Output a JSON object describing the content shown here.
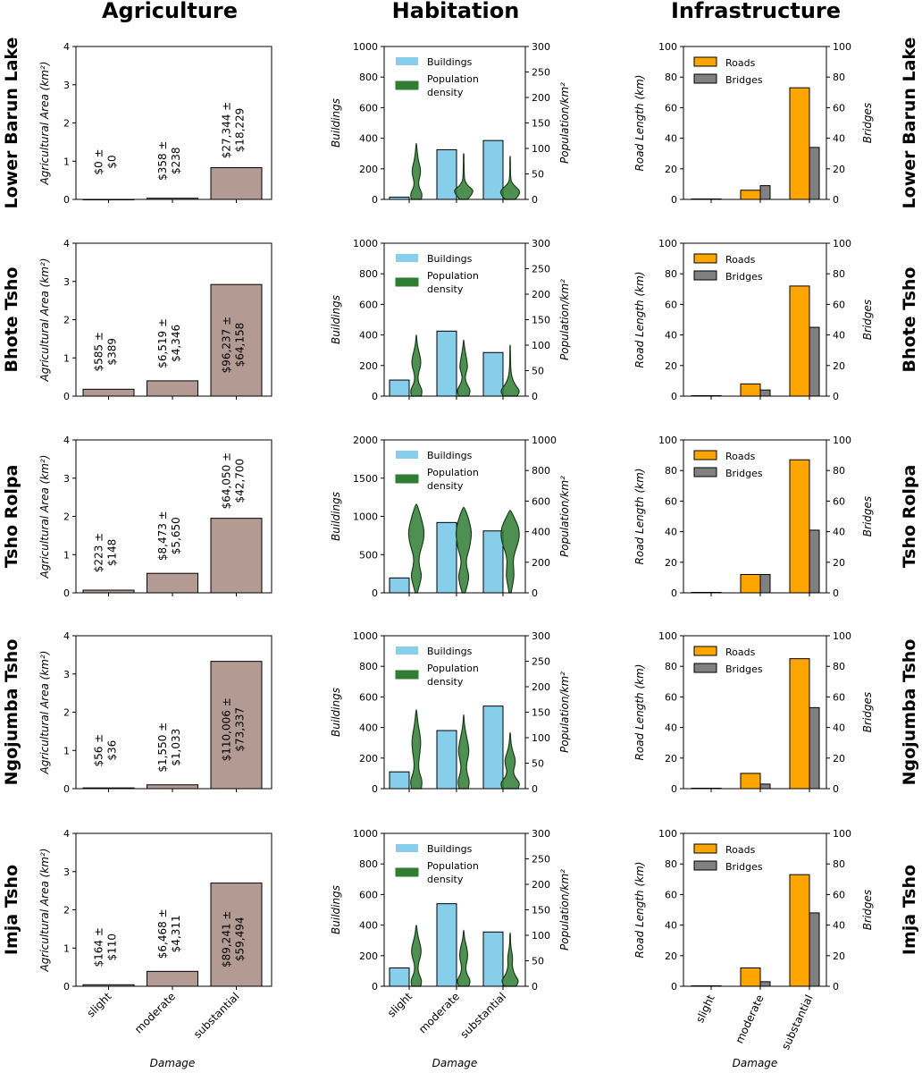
{
  "column_titles": [
    "Agriculture",
    "Habitation",
    "Infrastructure"
  ],
  "rows": [
    "Lower Barun Lake",
    "Bhote Tsho",
    "Tsho Rolpa",
    "Ngojumba Tsho",
    "Imja Tsho"
  ],
  "categories": [
    "slight",
    "moderate",
    "substantial"
  ],
  "xlabel": "Damage",
  "colors": {
    "agriculture": "#b39b94",
    "buildings": "#87ceeb",
    "population": "#2e7d32",
    "roads": "#ffa500",
    "bridges": "#808080"
  },
  "chart_data": [
    {
      "type": "bar",
      "row": "Lower Barun Lake",
      "column": "Agriculture",
      "ylabel": "Agricultural Area (km²)",
      "ylim": [
        0,
        4
      ],
      "yticks": [
        "0",
        "1",
        "2",
        "3",
        "4"
      ],
      "values": [
        0.0,
        0.03,
        0.83
      ],
      "annotations": [
        [
          "$0 ±",
          "$0"
        ],
        [
          "$358 ±",
          "$238"
        ],
        [
          "$27,344 ±",
          "$18,229"
        ]
      ]
    },
    {
      "type": "bar",
      "row": "Bhote Tsho",
      "column": "Agriculture",
      "ylabel": "Agricultural Area (km²)",
      "ylim": [
        0,
        4
      ],
      "yticks": [
        "0",
        "1",
        "2",
        "3",
        "4"
      ],
      "values": [
        0.18,
        0.4,
        2.92
      ],
      "annotations": [
        [
          "$585 ±",
          "$389"
        ],
        [
          "$6,519 ±",
          "$4,346"
        ],
        [
          "$96,237 ±",
          "$64,158"
        ]
      ]
    },
    {
      "type": "bar",
      "row": "Tsho Rolpa",
      "column": "Agriculture",
      "ylabel": "Agricultural Area (km²)",
      "ylim": [
        0,
        4
      ],
      "yticks": [
        "0",
        "1",
        "2",
        "3",
        "4"
      ],
      "values": [
        0.07,
        0.51,
        1.95
      ],
      "annotations": [
        [
          "$223 ±",
          "$148"
        ],
        [
          "$8,473 ±",
          "$5,650"
        ],
        [
          "$64,050 ±",
          "$42,700"
        ]
      ]
    },
    {
      "type": "bar",
      "row": "Ngojumba Tsho",
      "column": "Agriculture",
      "ylabel": "Agricultural Area (km²)",
      "ylim": [
        0,
        4
      ],
      "yticks": [
        "0",
        "1",
        "2",
        "3",
        "4"
      ],
      "values": [
        0.02,
        0.1,
        3.33
      ],
      "annotations": [
        [
          "$56 ±",
          "$36"
        ],
        [
          "$1,550 ±",
          "$1,033"
        ],
        [
          "$110,006 ±",
          "$73,337"
        ]
      ]
    },
    {
      "type": "bar",
      "row": "Imja Tsho",
      "column": "Agriculture",
      "ylabel": "Agricultural Area (km²)",
      "ylim": [
        0,
        4
      ],
      "yticks": [
        "0",
        "1",
        "2",
        "3",
        "4"
      ],
      "values": [
        0.04,
        0.39,
        2.7
      ],
      "annotations": [
        [
          "$164 ±",
          "$110"
        ],
        [
          "$6,468 ±",
          "$4,311"
        ],
        [
          "$89,241 ±",
          "$59,494"
        ]
      ]
    },
    {
      "type": "bar",
      "row": "Lower Barun Lake",
      "column": "Habitation",
      "ylabel": "Buildings",
      "ylabel2": "Population/km²",
      "ylim": [
        0,
        1000
      ],
      "ylim2": [
        0,
        300
      ],
      "yticks": [
        "0",
        "200",
        "400",
        "600",
        "800",
        "1000"
      ],
      "yticks2": [
        "0",
        "50",
        "100",
        "150",
        "200",
        "250",
        "300"
      ],
      "legend": [
        "Buildings",
        "Population density"
      ],
      "values": [
        15,
        325,
        385
      ],
      "violins": [
        {
          "min": 0,
          "max": 110,
          "profile": [
            0.5,
            0.6,
            0.3,
            0.2,
            0.35,
            0.45,
            0.35,
            0.2,
            0.12,
            0.06,
            0.02
          ]
        },
        {
          "min": 0,
          "max": 90,
          "profile": [
            0.4,
            0.8,
            1.0,
            0.4,
            0.12,
            0.06,
            0.05,
            0.04,
            0.03,
            0.03,
            0.02
          ]
        },
        {
          "min": 0,
          "max": 85,
          "profile": [
            0.5,
            0.9,
            1.0,
            0.5,
            0.12,
            0.06,
            0.04,
            0.03,
            0.03,
            0.02,
            0.02
          ]
        }
      ]
    },
    {
      "type": "bar",
      "row": "Bhote Tsho",
      "column": "Habitation",
      "ylabel": "Buildings",
      "ylabel2": "Population/km²",
      "ylim": [
        0,
        1000
      ],
      "ylim2": [
        0,
        300
      ],
      "yticks": [
        "0",
        "200",
        "400",
        "600",
        "800",
        "1000"
      ],
      "yticks2": [
        "0",
        "50",
        "100",
        "150",
        "200",
        "250",
        "300"
      ],
      "legend": [
        "Buildings",
        "Population density"
      ],
      "values": [
        105,
        425,
        285
      ],
      "violins": [
        {
          "min": 0,
          "max": 120,
          "profile": [
            0.5,
            0.6,
            0.25,
            0.15,
            0.25,
            0.45,
            0.45,
            0.3,
            0.15,
            0.05,
            0.02
          ]
        },
        {
          "min": 0,
          "max": 110,
          "profile": [
            0.5,
            0.7,
            0.35,
            0.15,
            0.2,
            0.4,
            0.35,
            0.25,
            0.15,
            0.06,
            0.02
          ]
        },
        {
          "min": 0,
          "max": 100,
          "profile": [
            0.7,
            1.0,
            0.6,
            0.3,
            0.15,
            0.08,
            0.05,
            0.04,
            0.03,
            0.02,
            0.02
          ]
        }
      ]
    },
    {
      "type": "bar",
      "row": "Tsho Rolpa",
      "column": "Habitation",
      "ylabel": "Buildings",
      "ylabel2": "Population/km²",
      "ylim": [
        0,
        2000
      ],
      "ylim2": [
        0,
        1000
      ],
      "yticks": [
        "0",
        "500",
        "1000",
        "1500",
        "2000"
      ],
      "yticks2": [
        "0",
        "200",
        "400",
        "600",
        "800",
        "1000"
      ],
      "legend": [
        "Buildings",
        "Population density"
      ],
      "values": [
        195,
        920,
        810
      ],
      "violins": [
        {
          "min": 0,
          "max": 580,
          "profile": [
            0.1,
            0.35,
            0.55,
            0.3,
            0.25,
            0.5,
            0.75,
            0.8,
            0.6,
            0.35,
            0.05
          ]
        },
        {
          "min": 0,
          "max": 560,
          "profile": [
            0.15,
            0.4,
            0.55,
            0.3,
            0.25,
            0.55,
            0.7,
            0.8,
            0.65,
            0.4,
            0.05
          ]
        },
        {
          "min": 0,
          "max": 540,
          "profile": [
            0.1,
            0.25,
            0.4,
            0.35,
            0.3,
            0.5,
            0.8,
            0.95,
            0.85,
            0.45,
            0.05
          ]
        }
      ]
    },
    {
      "type": "bar",
      "row": "Ngojumba Tsho",
      "column": "Habitation",
      "ylabel": "Buildings",
      "ylabel2": "Population/km²",
      "ylim": [
        0,
        1000
      ],
      "ylim2": [
        0,
        300
      ],
      "yticks": [
        "0",
        "200",
        "400",
        "600",
        "800",
        "1000"
      ],
      "yticks2": [
        "0",
        "50",
        "100",
        "150",
        "200",
        "250",
        "300"
      ],
      "legend": [
        "Buildings",
        "Population density"
      ],
      "values": [
        110,
        380,
        540
      ],
      "violins": [
        {
          "min": 0,
          "max": 155,
          "profile": [
            0.5,
            0.6,
            0.3,
            0.2,
            0.3,
            0.4,
            0.45,
            0.35,
            0.2,
            0.1,
            0.02
          ]
        },
        {
          "min": 0,
          "max": 145,
          "profile": [
            0.45,
            0.6,
            0.35,
            0.25,
            0.4,
            0.55,
            0.45,
            0.3,
            0.15,
            0.05,
            0.02
          ]
        },
        {
          "min": 0,
          "max": 110,
          "profile": [
            0.8,
            1.0,
            0.5,
            0.3,
            0.45,
            0.55,
            0.4,
            0.2,
            0.1,
            0.05,
            0.02
          ]
        }
      ]
    },
    {
      "type": "bar",
      "row": "Imja Tsho",
      "column": "Habitation",
      "ylabel": "Buildings",
      "ylabel2": "Population/km²",
      "ylim": [
        0,
        1000
      ],
      "ylim2": [
        0,
        300
      ],
      "yticks": [
        "0",
        "200",
        "400",
        "600",
        "800",
        "1000"
      ],
      "yticks2": [
        "0",
        "50",
        "100",
        "150",
        "200",
        "250",
        "300"
      ],
      "legend": [
        "Buildings",
        "Population density"
      ],
      "values": [
        120,
        540,
        355
      ],
      "violins": [
        {
          "min": 0,
          "max": 120,
          "profile": [
            0.45,
            0.55,
            0.25,
            0.15,
            0.25,
            0.45,
            0.5,
            0.35,
            0.2,
            0.08,
            0.02
          ]
        },
        {
          "min": 0,
          "max": 110,
          "profile": [
            0.5,
            0.7,
            0.35,
            0.2,
            0.25,
            0.4,
            0.4,
            0.3,
            0.15,
            0.05,
            0.02
          ]
        },
        {
          "min": 0,
          "max": 105,
          "profile": [
            0.6,
            0.9,
            0.5,
            0.3,
            0.2,
            0.25,
            0.2,
            0.1,
            0.05,
            0.03,
            0.02
          ]
        }
      ]
    },
    {
      "type": "bar",
      "row": "Lower Barun Lake",
      "column": "Infrastructure",
      "ylabel": "Road Length (km)",
      "ylabel2": "Bridges",
      "ylim": [
        0,
        100
      ],
      "ylim2": [
        0,
        100
      ],
      "yticks": [
        "0",
        "20",
        "40",
        "60",
        "80",
        "100"
      ],
      "yticks2": [
        "0",
        "20",
        "40",
        "60",
        "80",
        "100"
      ],
      "legend": [
        "Roads",
        "Bridges"
      ],
      "series": [
        {
          "name": "Roads",
          "values": [
            0.3,
            6,
            73
          ]
        },
        {
          "name": "Bridges",
          "values": [
            0.3,
            9,
            34
          ]
        }
      ]
    },
    {
      "type": "bar",
      "row": "Bhote Tsho",
      "column": "Infrastructure",
      "ylabel": "Road Length (km)",
      "ylabel2": "Bridges",
      "ylim": [
        0,
        100
      ],
      "ylim2": [
        0,
        100
      ],
      "yticks": [
        "0",
        "20",
        "40",
        "60",
        "80",
        "100"
      ],
      "yticks2": [
        "0",
        "20",
        "40",
        "60",
        "80",
        "100"
      ],
      "legend": [
        "Roads",
        "Bridges"
      ],
      "series": [
        {
          "name": "Roads",
          "values": [
            0.3,
            8,
            72
          ]
        },
        {
          "name": "Bridges",
          "values": [
            0.3,
            4,
            45
          ]
        }
      ]
    },
    {
      "type": "bar",
      "row": "Tsho Rolpa",
      "column": "Infrastructure",
      "ylabel": "Road Length (km)",
      "ylabel2": "Bridges",
      "ylim": [
        0,
        100
      ],
      "ylim2": [
        0,
        100
      ],
      "yticks": [
        "0",
        "20",
        "40",
        "60",
        "80",
        "100"
      ],
      "yticks2": [
        "0",
        "20",
        "40",
        "60",
        "80",
        "100"
      ],
      "legend": [
        "Roads",
        "Bridges"
      ],
      "series": [
        {
          "name": "Roads",
          "values": [
            0.3,
            12,
            87
          ]
        },
        {
          "name": "Bridges",
          "values": [
            0.3,
            12,
            41
          ]
        }
      ]
    },
    {
      "type": "bar",
      "row": "Ngojumba Tsho",
      "column": "Infrastructure",
      "ylabel": "Road Length (km)",
      "ylabel2": "Bridges",
      "ylim": [
        0,
        100
      ],
      "ylim2": [
        0,
        100
      ],
      "yticks": [
        "0",
        "20",
        "40",
        "60",
        "80",
        "100"
      ],
      "yticks2": [
        "0",
        "20",
        "40",
        "60",
        "80",
        "100"
      ],
      "legend": [
        "Roads",
        "Bridges"
      ],
      "series": [
        {
          "name": "Roads",
          "values": [
            0.3,
            10,
            85
          ]
        },
        {
          "name": "Bridges",
          "values": [
            0.3,
            3,
            53
          ]
        }
      ]
    },
    {
      "type": "bar",
      "row": "Imja Tsho",
      "column": "Infrastructure",
      "ylabel": "Road Length (km)",
      "ylabel2": "Bridges",
      "ylim": [
        0,
        100
      ],
      "ylim2": [
        0,
        100
      ],
      "yticks": [
        "0",
        "20",
        "40",
        "60",
        "80",
        "100"
      ],
      "yticks2": [
        "0",
        "20",
        "40",
        "60",
        "80",
        "100"
      ],
      "legend": [
        "Roads",
        "Bridges"
      ],
      "series": [
        {
          "name": "Roads",
          "values": [
            0.3,
            12,
            73
          ]
        },
        {
          "name": "Bridges",
          "values": [
            0.3,
            3,
            48
          ]
        }
      ]
    }
  ]
}
